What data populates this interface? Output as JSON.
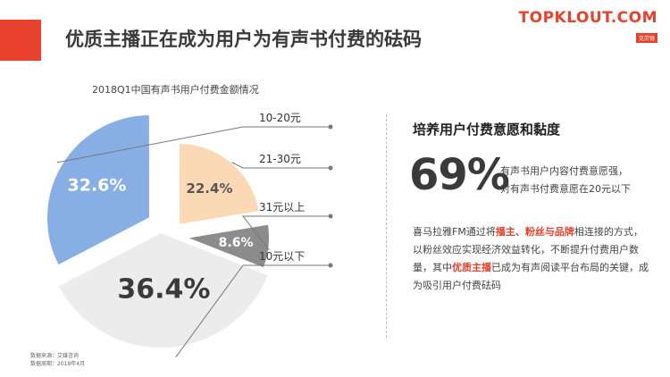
{
  "title": "优质主播正在成为用户为有声书付费的砝码",
  "brand": {
    "name": "TOPKLOUT.COM",
    "tagline": "克劳锐",
    "accent": "#e8412c"
  },
  "colors": {
    "accent": "#e8412c",
    "slice_10_20": "#88aee6",
    "slice_21_30": "#fbd9b5",
    "slice_31_up": "#8c8c8c",
    "slice_10_down": "#ececec",
    "highlight": "#e8412c"
  },
  "chart_data": {
    "type": "pie",
    "title": "2018Q1中国有声书用户付费金额情况",
    "slices": [
      {
        "label": "10-20元",
        "value": 32.6,
        "value_label": "32.6%",
        "color": "#88aee6"
      },
      {
        "label": "21-30元",
        "value": 22.4,
        "value_label": "22.4%",
        "color": "#fbd9b5"
      },
      {
        "label": "31元以上",
        "value": 8.6,
        "value_label": "8.6%",
        "color": "#8c8c8c"
      },
      {
        "label": "10元以下",
        "value": 36.4,
        "value_label": "36.4%",
        "color": "#ececec"
      }
    ]
  },
  "panel": {
    "title": "培养用户付费意愿和黏度",
    "big_value": "69%",
    "note_line1": "有声书用户内容付费意愿强，",
    "note_line2": "对有声书付费意愿在20元以下",
    "body_part1": "喜马拉雅FM通过将",
    "body_hl1": "播主、粉丝与品牌",
    "body_part2": "相连接的方式，以粉丝效应实现经济效益转化，不断提升付费用户数量，其中",
    "body_hl2": "优质主播",
    "body_part3": "已成为有声阅读平台布局的关键，成为吸引用户付费砝码"
  },
  "source": {
    "line1": "数据来源：艾媒咨询",
    "line2": "数据周期：2018年4月"
  }
}
